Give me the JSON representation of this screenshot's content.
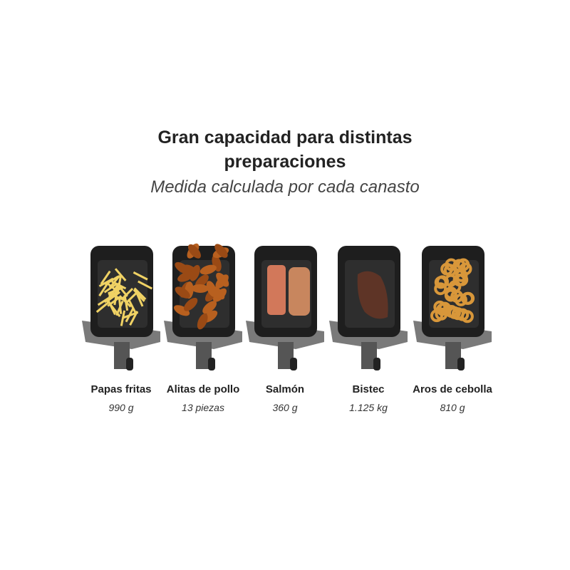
{
  "header": {
    "title_line1": "Gran capacidad para distintas",
    "title_line2": "preparaciones",
    "subtitle": "Medida calculada por cada canasto"
  },
  "items": [
    {
      "name": "Papas fritas",
      "quantity": "990 g",
      "food": "fries",
      "color": "#f0d264"
    },
    {
      "name": "Alitas de pollo",
      "quantity": "13 piezas",
      "food": "chicken-wings",
      "color": "#b8601f"
    },
    {
      "name": "Salmón",
      "quantity": "360 g",
      "food": "salmon",
      "color": "#d2785a"
    },
    {
      "name": "Bistec",
      "quantity": "1.125 kg",
      "food": "steak",
      "color": "#5e3426"
    },
    {
      "name": "Aros de cebolla",
      "quantity": "810 g",
      "food": "onion-rings",
      "color": "#d8973a"
    }
  ]
}
